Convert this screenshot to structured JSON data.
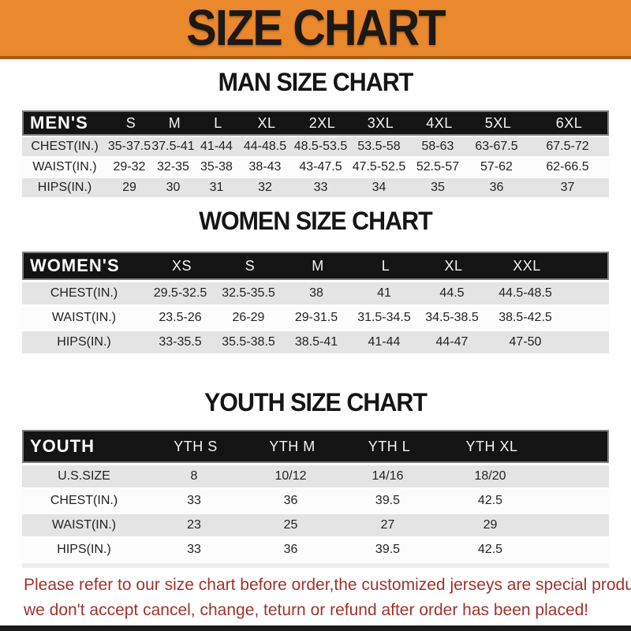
{
  "banner": {
    "title": "SIZE CHART"
  },
  "sections": [
    {
      "heading": "MAN SIZE CHART",
      "table": {
        "label": "MEN'S",
        "columns": [
          "S",
          "M",
          "L",
          "XL",
          "2XL",
          "3XL",
          "4XL",
          "5XL",
          "6XL"
        ],
        "rows": [
          {
            "label": "CHEST(IN.)",
            "values": [
              "35-37.5",
              "37.5-41",
              "41-44",
              "44-48.5",
              "48.5-53.5",
              "53.5-58",
              "58-63",
              "63-67.5",
              "67.5-72"
            ]
          },
          {
            "label": "WAIST(IN.)",
            "values": [
              "29-32",
              "32-35",
              "35-38",
              "38-43",
              "43-47.5",
              "47.5-52.5",
              "52.5-57",
              "57-62",
              "62-66.5"
            ]
          },
          {
            "label": "HIPS(IN.)",
            "values": [
              "29",
              "30",
              "31",
              "32",
              "33",
              "34",
              "35",
              "36",
              "37"
            ]
          }
        ]
      }
    },
    {
      "heading": "WOMEN SIZE CHART",
      "table": {
        "label": "WOMEN'S",
        "columns": [
          "XS",
          "S",
          "M",
          "L",
          "XL",
          "XXL"
        ],
        "rows": [
          {
            "label": "CHEST(IN.)",
            "values": [
              "29.5-32.5",
              "32.5-35.5",
              "38",
              "41",
              "44.5",
              "44.5-48.5"
            ]
          },
          {
            "label": "WAIST(IN.)",
            "values": [
              "23.5-26",
              "26-29",
              "29-31.5",
              "31.5-34.5",
              "34.5-38.5",
              "38.5-42.5"
            ]
          },
          {
            "label": "HIPS(IN.)",
            "values": [
              "33-35.5",
              "35.5-38.5",
              "38.5-41",
              "41-44",
              "44-47",
              "47-50"
            ]
          }
        ]
      }
    },
    {
      "heading": "YOUTH SIZE CHART",
      "table": {
        "label": "YOUTH",
        "columns": [
          "YTH S",
          "YTH M",
          "YTH L",
          "YTH XL"
        ],
        "rows": [
          {
            "label": "U.S.SIZE",
            "values": [
              "8",
              "10/12",
              "14/16",
              "18/20"
            ]
          },
          {
            "label": "CHEST(IN.)",
            "values": [
              "33",
              "36",
              "39.5",
              "42.5"
            ]
          },
          {
            "label": "WAIST(IN.)",
            "values": [
              "23",
              "25",
              "27",
              "29"
            ]
          },
          {
            "label": "HIPS(IN.)",
            "values": [
              "33",
              "36",
              "39.5",
              "42.5"
            ]
          }
        ]
      }
    }
  ],
  "footer": {
    "line1": "Please refer to our size chart before order,the customized jerseys are special products,",
    "line2": "we don't accept cancel, change, teturn or refund after order has been placed!"
  },
  "colors": {
    "banner_orange": "#E9882C",
    "banner_border": "#A85A16",
    "header_black": "#141414",
    "row_gray": "#E4E4E5",
    "footer_red": "#9E332B"
  }
}
